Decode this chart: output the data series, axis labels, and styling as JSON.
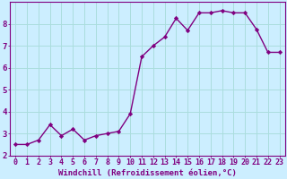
{
  "x": [
    0,
    1,
    2,
    3,
    4,
    5,
    6,
    7,
    8,
    9,
    10,
    11,
    12,
    13,
    14,
    15,
    16,
    17,
    18,
    19,
    20,
    21,
    22,
    23
  ],
  "y": [
    2.5,
    2.5,
    2.7,
    3.4,
    2.9,
    3.2,
    2.7,
    2.9,
    3.0,
    3.1,
    3.9,
    6.5,
    7.0,
    7.4,
    8.25,
    7.7,
    8.5,
    8.5,
    8.6,
    8.5,
    8.5,
    7.75,
    6.7,
    6.7
  ],
  "line_color": "#800080",
  "marker": "D",
  "marker_size": 2.2,
  "bg_color": "#cceeff",
  "grid_color": "#aadddd",
  "axis_color": "#800080",
  "xlabel": "Windchill (Refroidissement éolien,°C)",
  "ylim": [
    2,
    9
  ],
  "xlim": [
    -0.5,
    23.5
  ],
  "yticks": [
    2,
    3,
    4,
    5,
    6,
    7,
    8
  ],
  "xticks": [
    0,
    1,
    2,
    3,
    4,
    5,
    6,
    7,
    8,
    9,
    10,
    11,
    12,
    13,
    14,
    15,
    16,
    17,
    18,
    19,
    20,
    21,
    22,
    23
  ],
  "title_color": "#800080",
  "label_fontsize": 6.5,
  "tick_fontsize": 6.0,
  "linewidth": 1.0
}
